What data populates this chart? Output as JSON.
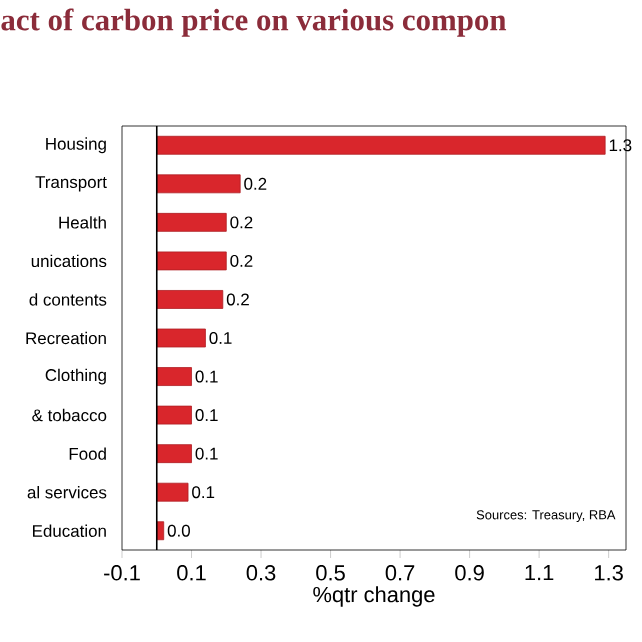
{
  "chart_data": {
    "type": "bar",
    "orientation": "horizontal",
    "title": "act of carbon price on various compon",
    "categories": [
      "Housing",
      "Transport",
      "Health",
      "unications",
      "d contents",
      "Recreation",
      "Clothing",
      "& tobacco",
      "Food",
      "al services",
      "Education"
    ],
    "values": [
      1.29,
      0.24,
      0.2,
      0.2,
      0.19,
      0.14,
      0.1,
      0.1,
      0.1,
      0.09,
      0.02
    ],
    "value_labels": [
      "1.3",
      "0.2",
      "0.2",
      "0.2",
      "0.2",
      "0.1",
      "0.1",
      "0.1",
      "0.1",
      "0.1",
      "0.0"
    ],
    "color": "#d9262c",
    "xlim": [
      -0.1,
      1.35
    ],
    "xticks": [
      -0.1,
      0.1,
      0.3,
      0.5,
      0.7,
      0.9,
      1.1,
      1.3
    ],
    "xlabel": "%qtr change",
    "ref_lines": [
      {
        "axis": "x",
        "value": 0
      }
    ],
    "annotations": [
      "Sources: Treasury, RBA"
    ]
  }
}
